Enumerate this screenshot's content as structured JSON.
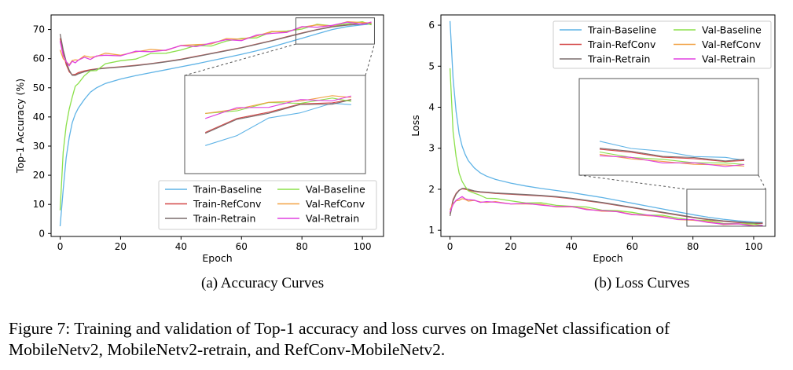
{
  "figure": {
    "caption_line1": "Figure 7: Training and validation of Top-1 accuracy and loss curves on ImageNet classification of",
    "caption_line2": "MobileNetv2, MobileNetv2-retrain, and RefConv-MobileNetv2."
  },
  "chart_data": [
    {
      "type": "line",
      "subtitle": "(a)  Accuracy Curves",
      "xlabel": "Epoch",
      "ylabel": "Top-1  Accuracy (%)",
      "xlim": [
        -3,
        107
      ],
      "ylim": [
        -1,
        75
      ],
      "xticks": [
        0,
        20,
        40,
        60,
        80,
        100
      ],
      "yticks": [
        0,
        10,
        20,
        30,
        40,
        50,
        60,
        70
      ],
      "legend": "lower-right",
      "inset": {
        "xlim": [
          78,
          104
        ],
        "ylim": [
          65,
          74
        ],
        "position": "center-right"
      },
      "x": [
        0,
        1,
        2,
        3,
        4,
        5,
        6,
        8,
        10,
        12,
        15,
        20,
        25,
        30,
        35,
        40,
        45,
        50,
        55,
        60,
        65,
        70,
        75,
        80,
        85,
        90,
        95,
        100,
        103
      ],
      "series": [
        {
          "name": "Train-Baseline",
          "color": "#5fb3e6",
          "values": [
            2.5,
            15,
            26,
            33,
            38,
            41,
            43,
            46,
            48.5,
            50,
            51.5,
            53,
            54.2,
            55.2,
            56.2,
            57.2,
            58.2,
            59.3,
            60.4,
            61.5,
            62.7,
            64,
            65.5,
            67,
            68.5,
            70,
            71,
            71.6,
            71.9
          ]
        },
        {
          "name": "Train-RefConv",
          "color": "#d44848",
          "values": [
            67,
            62,
            58,
            55.5,
            54.5,
            54.6,
            55.2,
            55.8,
            56.2,
            56.5,
            56.8,
            57.2,
            57.7,
            58.3,
            59,
            59.8,
            60.8,
            61.8,
            62.8,
            63.8,
            65,
            66.2,
            67.5,
            68.8,
            70,
            71,
            71.6,
            72,
            72.1
          ]
        },
        {
          "name": "Train-Retrain",
          "color": "#7a6d6d",
          "values": [
            68.5,
            63,
            59,
            56,
            54.3,
            54.3,
            54.8,
            55.5,
            56,
            56.4,
            56.7,
            57.1,
            57.6,
            58.2,
            58.9,
            59.7,
            60.7,
            61.7,
            62.7,
            63.7,
            64.9,
            66.1,
            67.4,
            68.7,
            69.9,
            70.9,
            71.5,
            71.9,
            72
          ]
        },
        {
          "name": "Val-Baseline",
          "color": "#8be04a",
          "values": [
            8,
            28,
            37,
            43,
            47,
            50,
            52,
            54,
            55.5,
            56.5,
            57.8,
            59.3,
            60.3,
            61.2,
            62.2,
            63.1,
            64,
            64.9,
            65.8,
            66.7,
            67.7,
            68.7,
            69.6,
            70.5,
            71.2,
            71.7,
            72,
            72.2,
            72.2
          ]
        },
        {
          "name": "Val-RefConv",
          "color": "#f2a246",
          "values": [
            63,
            60,
            59,
            58.5,
            59,
            59.5,
            60,
            60.4,
            60.7,
            61,
            61.3,
            61.7,
            62.2,
            62.8,
            63.4,
            64.1,
            64.8,
            65.5,
            66.3,
            67,
            67.9,
            68.8,
            69.7,
            70.6,
            71.3,
            71.8,
            72.2,
            72.5,
            72.6
          ]
        },
        {
          "name": "Val-Retrain",
          "color": "#e040e0",
          "values": [
            66,
            61,
            59,
            58,
            58.5,
            59,
            59.5,
            60,
            60.3,
            60.6,
            61,
            61.5,
            62,
            62.6,
            63.2,
            63.9,
            64.6,
            65.3,
            66.1,
            66.8,
            67.7,
            68.6,
            69.5,
            70.4,
            71.1,
            71.6,
            72,
            72.3,
            72.4
          ]
        }
      ]
    },
    {
      "type": "line",
      "subtitle": "(b)  Loss Curves",
      "xlabel": "Epoch",
      "ylabel": "Loss",
      "xlim": [
        -3,
        107
      ],
      "ylim": [
        0.85,
        6.25
      ],
      "xticks": [
        0,
        20,
        40,
        60,
        80,
        100
      ],
      "yticks": [
        1,
        2,
        3,
        4,
        5,
        6
      ],
      "legend": "upper-right",
      "inset": {
        "xlim": [
          78,
          104
        ],
        "ylim": [
          1.1,
          2.0
        ],
        "position": "center"
      },
      "x": [
        0,
        1,
        2,
        3,
        4,
        5,
        6,
        8,
        10,
        12,
        15,
        20,
        25,
        30,
        35,
        40,
        45,
        50,
        55,
        60,
        65,
        70,
        75,
        80,
        85,
        90,
        95,
        100,
        103
      ],
      "series": [
        {
          "name": "Train-Baseline",
          "color": "#5fb3e6",
          "values": [
            6.1,
            4.7,
            3.9,
            3.35,
            3.05,
            2.85,
            2.7,
            2.52,
            2.4,
            2.32,
            2.24,
            2.15,
            2.08,
            2.02,
            1.97,
            1.92,
            1.86,
            1.8,
            1.73,
            1.66,
            1.59,
            1.52,
            1.45,
            1.38,
            1.32,
            1.27,
            1.23,
            1.2,
            1.19
          ]
        },
        {
          "name": "Train-RefConv",
          "color": "#d44848",
          "values": [
            1.4,
            1.75,
            1.9,
            1.98,
            2.01,
            2.0,
            1.98,
            1.95,
            1.93,
            1.92,
            1.9,
            1.88,
            1.86,
            1.84,
            1.81,
            1.77,
            1.72,
            1.67,
            1.61,
            1.55,
            1.49,
            1.43,
            1.37,
            1.31,
            1.26,
            1.22,
            1.19,
            1.17,
            1.17
          ]
        },
        {
          "name": "Train-Retrain",
          "color": "#7a6d6d",
          "values": [
            1.35,
            1.72,
            1.88,
            1.97,
            2.02,
            2.02,
            2.0,
            1.96,
            1.94,
            1.93,
            1.91,
            1.89,
            1.87,
            1.85,
            1.82,
            1.78,
            1.73,
            1.68,
            1.62,
            1.56,
            1.5,
            1.44,
            1.38,
            1.32,
            1.27,
            1.23,
            1.2,
            1.18,
            1.18
          ]
        },
        {
          "name": "Val-Baseline",
          "color": "#8be04a",
          "values": [
            4.95,
            3.4,
            2.8,
            2.4,
            2.2,
            2.05,
            1.98,
            1.9,
            1.84,
            1.8,
            1.76,
            1.72,
            1.68,
            1.65,
            1.62,
            1.59,
            1.55,
            1.51,
            1.47,
            1.43,
            1.39,
            1.35,
            1.3,
            1.26,
            1.22,
            1.18,
            1.16,
            1.14,
            1.14
          ]
        },
        {
          "name": "Val-RefConv",
          "color": "#f2a246",
          "values": [
            1.5,
            1.65,
            1.72,
            1.75,
            1.76,
            1.75,
            1.73,
            1.71,
            1.7,
            1.69,
            1.68,
            1.66,
            1.64,
            1.62,
            1.59,
            1.56,
            1.52,
            1.48,
            1.44,
            1.4,
            1.36,
            1.32,
            1.28,
            1.24,
            1.2,
            1.16,
            1.14,
            1.12,
            1.12
          ]
        },
        {
          "name": "Val-Retrain",
          "color": "#e040e0",
          "values": [
            1.45,
            1.63,
            1.73,
            1.79,
            1.8,
            1.78,
            1.75,
            1.72,
            1.7,
            1.69,
            1.68,
            1.66,
            1.64,
            1.62,
            1.59,
            1.56,
            1.52,
            1.48,
            1.44,
            1.4,
            1.36,
            1.32,
            1.28,
            1.24,
            1.2,
            1.16,
            1.14,
            1.12,
            1.12
          ]
        }
      ]
    }
  ]
}
